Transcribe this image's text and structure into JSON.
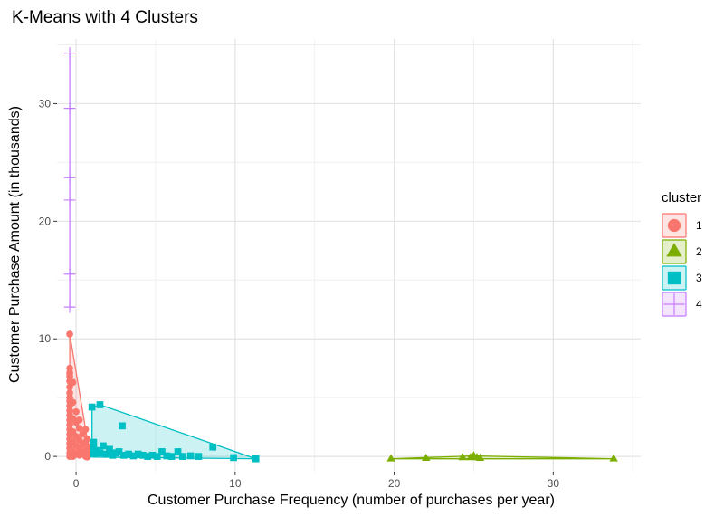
{
  "chart_data": {
    "type": "scatter",
    "title": "K-Means with 4 Clusters",
    "xlabel": "Customer Purchase Frequency (number of purchases per year)",
    "ylabel": "Customer Purchase Amount (in thousands)",
    "xlim": [
      -1.2,
      35.5
    ],
    "ylim": [
      -1.3,
      35.5
    ],
    "x_ticks": [
      0,
      10,
      20,
      30
    ],
    "y_ticks": [
      0,
      10,
      20,
      30
    ],
    "grid": true,
    "legend_position": "right",
    "legend_title": "cluster",
    "series": [
      {
        "name": "1",
        "color": "#F8766D",
        "marker": "circle",
        "hull": [
          [
            -0.4,
            10.4
          ],
          [
            -0.4,
            -0.05
          ],
          [
            0.7,
            -0.05
          ],
          [
            0.8,
            0.8
          ],
          [
            0.7,
            1.5
          ]
        ],
        "points": [
          [
            -0.4,
            10.4
          ],
          [
            -0.4,
            7.5
          ],
          [
            -0.4,
            7.1
          ],
          [
            -0.4,
            6.8
          ],
          [
            -0.4,
            6.4
          ],
          [
            -0.4,
            5.9
          ],
          [
            -0.4,
            5.4
          ],
          [
            -0.4,
            5.0
          ],
          [
            -0.4,
            4.7
          ],
          [
            -0.4,
            4.3
          ],
          [
            -0.4,
            3.9
          ],
          [
            -0.4,
            3.5
          ],
          [
            -0.4,
            3.1
          ],
          [
            -0.4,
            2.7
          ],
          [
            -0.4,
            2.3
          ],
          [
            -0.4,
            1.9
          ],
          [
            -0.4,
            1.5
          ],
          [
            -0.4,
            1.1
          ],
          [
            -0.4,
            0.7
          ],
          [
            -0.4,
            0.3
          ],
          [
            -0.4,
            0.0
          ],
          [
            -0.2,
            6.3
          ],
          [
            -0.2,
            4.6
          ],
          [
            -0.2,
            3.2
          ],
          [
            -0.2,
            2.1
          ],
          [
            -0.2,
            1.2
          ],
          [
            -0.2,
            0.4
          ],
          [
            -0.2,
            0.0
          ],
          [
            0.0,
            3.8
          ],
          [
            0.0,
            2.9
          ],
          [
            0.0,
            1.7
          ],
          [
            0.0,
            0.9
          ],
          [
            0.0,
            0.2
          ],
          [
            0.2,
            3.1
          ],
          [
            0.2,
            2.4
          ],
          [
            0.2,
            1.4
          ],
          [
            0.2,
            0.6
          ],
          [
            0.2,
            0.1
          ],
          [
            0.4,
            1.9
          ],
          [
            0.4,
            1.0
          ],
          [
            0.4,
            0.3
          ],
          [
            0.6,
            2.3
          ],
          [
            0.6,
            1.2
          ],
          [
            0.6,
            0.5
          ],
          [
            0.6,
            0.0
          ],
          [
            0.8,
            0.8
          ],
          [
            0.8,
            0.2
          ],
          [
            0.7,
            1.5
          ],
          [
            0.7,
            -0.05
          ]
        ]
      },
      {
        "name": "2",
        "color": "#7CAE00",
        "marker": "triangle",
        "hull": [
          [
            19.8,
            -0.2
          ],
          [
            25.0,
            0.05
          ],
          [
            33.8,
            -0.2
          ],
          [
            25.0,
            -0.2
          ]
        ],
        "points": [
          [
            19.8,
            -0.2
          ],
          [
            22.0,
            -0.15
          ],
          [
            24.3,
            -0.1
          ],
          [
            24.8,
            -0.1
          ],
          [
            25.0,
            0.05
          ],
          [
            25.2,
            -0.1
          ],
          [
            25.4,
            -0.15
          ],
          [
            33.8,
            -0.2
          ]
        ]
      },
      {
        "name": "3",
        "color": "#00BFC4",
        "marker": "square",
        "hull": [
          [
            1.0,
            4.2
          ],
          [
            1.5,
            4.4
          ],
          [
            11.3,
            -0.2
          ],
          [
            1.0,
            -0.05
          ]
        ],
        "points": [
          [
            1.0,
            4.2
          ],
          [
            1.5,
            4.4
          ],
          [
            2.9,
            2.6
          ],
          [
            8.6,
            0.8
          ],
          [
            6.4,
            0.4
          ],
          [
            5.4,
            0.4
          ],
          [
            1.1,
            1.2
          ],
          [
            1.1,
            0.7
          ],
          [
            1.1,
            0.2
          ],
          [
            1.3,
            0.5
          ],
          [
            1.5,
            0.3
          ],
          [
            1.7,
            0.9
          ],
          [
            1.9,
            0.2
          ],
          [
            2.1,
            0.6
          ],
          [
            2.3,
            0.1
          ],
          [
            2.5,
            0.3
          ],
          [
            2.7,
            0.4
          ],
          [
            3.0,
            0.1
          ],
          [
            3.3,
            0.2
          ],
          [
            3.6,
            0.05
          ],
          [
            3.9,
            0.2
          ],
          [
            4.2,
            0.1
          ],
          [
            4.5,
            0.0
          ],
          [
            4.8,
            0.1
          ],
          [
            5.1,
            0.0
          ],
          [
            5.7,
            0.05
          ],
          [
            6.0,
            0.0
          ],
          [
            6.7,
            0.0
          ],
          [
            7.2,
            0.05
          ],
          [
            7.7,
            0.0
          ],
          [
            9.9,
            -0.1
          ],
          [
            11.3,
            -0.2
          ]
        ]
      },
      {
        "name": "4",
        "color": "#C77CFF",
        "marker": "cross",
        "hull": [
          [
            -0.4,
            34.3
          ],
          [
            -0.4,
            12.7
          ]
        ],
        "points": [
          [
            -0.4,
            34.3
          ],
          [
            -0.4,
            29.6
          ],
          [
            -0.4,
            23.7
          ],
          [
            -0.4,
            21.8
          ],
          [
            -0.4,
            15.5
          ],
          [
            -0.4,
            12.7
          ]
        ]
      }
    ]
  }
}
